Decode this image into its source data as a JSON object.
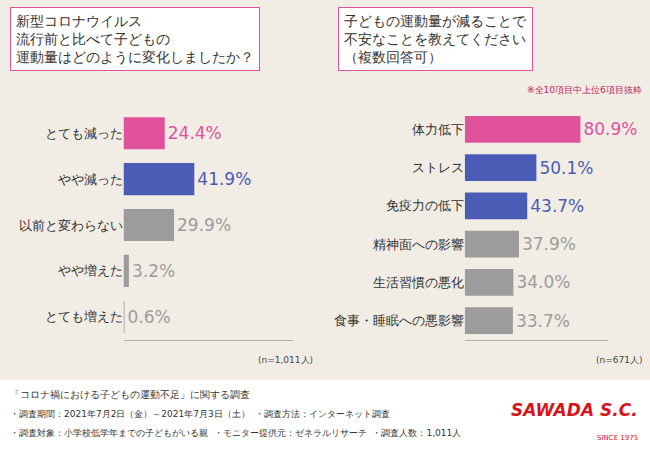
{
  "chart_data": [
    {
      "type": "bar",
      "orientation": "horizontal",
      "title": "新型コロナウイルス\n流行前と比べて子どもの\n運動量はどのように変化しましたか？",
      "categories": [
        "とても減った",
        "やや減った",
        "以前と変わらない",
        "やや増えた",
        "とても増えた"
      ],
      "values": [
        24.4,
        41.9,
        29.9,
        3.2,
        0.6
      ],
      "value_labels": [
        "24.4%",
        "41.9%",
        "29.9%",
        "3.2%",
        "0.6%"
      ],
      "colors": [
        "#e0529c",
        "#4b5cb6",
        "#9c9c9c",
        "#9c9c9c",
        "#9c9c9c"
      ],
      "xlim": [
        0,
        100
      ],
      "data_labels": true,
      "tick_labels": "y",
      "annotations": [
        "(n=1,011人)"
      ]
    },
    {
      "type": "bar",
      "orientation": "horizontal",
      "title": "子どもの運動量が減ることで\n不安なことを教えてください\n（複数回答可）",
      "subtitle": "※全10項目中上位6項目抜粋",
      "categories": [
        "体力低下",
        "ストレス",
        "免疫力の低下",
        "精神面への影響",
        "生活習慣の悪化",
        "食事・睡眠への悪影響"
      ],
      "values": [
        80.9,
        50.1,
        43.7,
        37.9,
        34.0,
        33.7
      ],
      "value_labels": [
        "80.9%",
        "50.1%",
        "43.7%",
        "37.9%",
        "34.0%",
        "33.7%"
      ],
      "colors": [
        "#e0529c",
        "#4b5cb6",
        "#4b5cb6",
        "#9c9c9c",
        "#9c9c9c",
        "#9c9c9c"
      ],
      "xlim": [
        0,
        100
      ],
      "data_labels": true,
      "tick_labels": "y",
      "annotations": [
        "(n=671人)"
      ]
    }
  ],
  "footer": {
    "survey_title": "「コロナ禍における子どもの運動不足」に関する調査",
    "details": [
      [
        "・調査期間：2021年7月2日（金）～2021年7月3日（土）",
        "・調査方法：インターネット調査"
      ],
      [
        "・調査対象：小学校低学年までの子どもがいる親",
        "・モニター提供元：ゼネラルリサーチ",
        "・調査人数：1,011人"
      ]
    ],
    "logo": "SAWADA S.C.",
    "logo_sub": "SINCE 1975"
  }
}
